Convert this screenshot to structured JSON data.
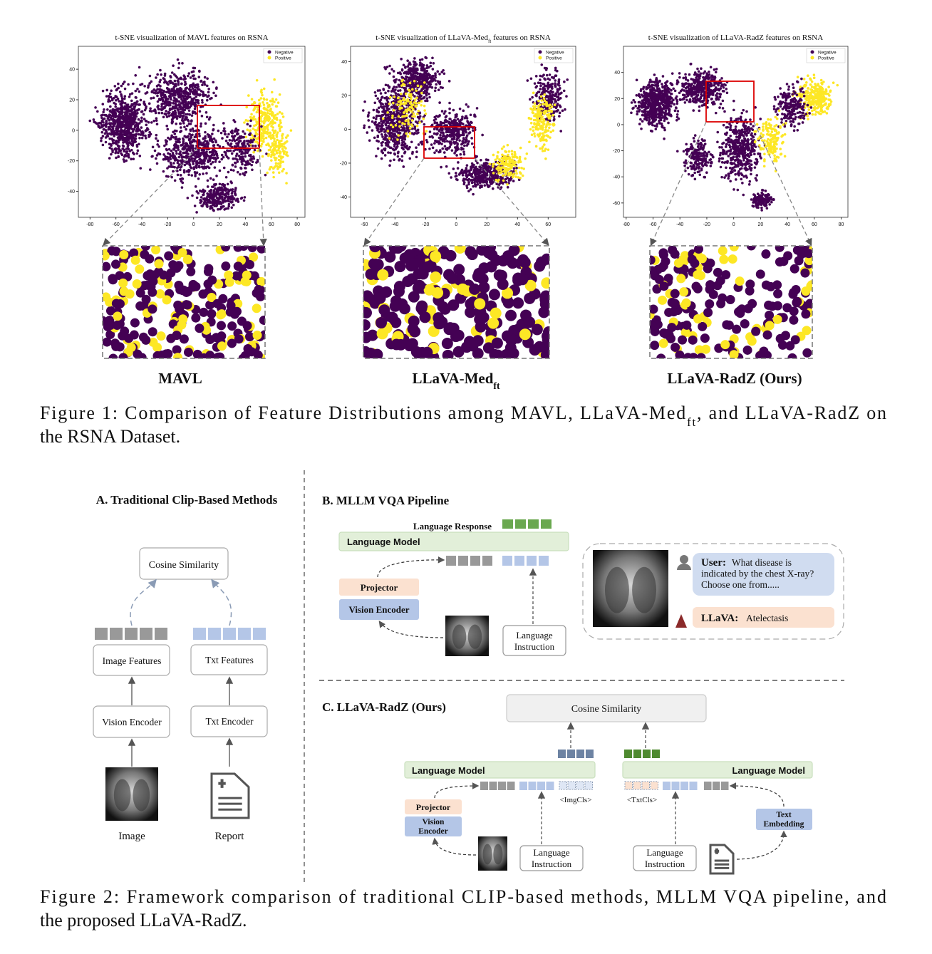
{
  "figure1": {
    "colors": [
      "#440154",
      "#fde725"
    ],
    "plots": [
      {
        "title": [
          {
            "text": "t-SNE visualization of MAVL features on RSNA"
          }
        ],
        "legend": [
          "Negative",
          "Positive"
        ],
        "xlim": [
          -89,
          86
        ],
        "ylim": [
          -57,
          55
        ],
        "xticks": [
          -80,
          -60,
          -40,
          -20,
          0,
          20,
          40,
          60,
          80
        ],
        "yticks": [
          40,
          20,
          0,
          -20,
          -40
        ],
        "label": [
          {
            "text": "MAVL"
          }
        ]
      },
      {
        "title": [
          {
            "text": "t-SNE visualization of LLaVA-Med"
          },
          {
            "text": "ft",
            "sub": true
          },
          {
            "text": " features on RSNA"
          }
        ],
        "legend": [
          "Negative",
          "Positive"
        ],
        "xlim": [
          -69,
          78
        ],
        "ylim": [
          -52,
          49
        ],
        "xticks": [
          -60,
          -40,
          -20,
          0,
          20,
          40,
          60
        ],
        "yticks": [
          40,
          20,
          0,
          -20,
          -40
        ],
        "label": [
          {
            "text": "LLaVA-Med"
          },
          {
            "text": "ft",
            "sub": true
          }
        ]
      },
      {
        "title": [
          {
            "text": "t-SNE visualization of LLaVA-RadZ features on RSNA"
          }
        ],
        "legend": [
          "Negative",
          "Positive"
        ],
        "xlim": [
          -82,
          85
        ],
        "ylim": [
          -71,
          60
        ],
        "xticks": [
          -80,
          -60,
          -40,
          -20,
          0,
          20,
          40,
          60,
          80
        ],
        "yticks": [
          40,
          20,
          0,
          -20,
          -40,
          -60
        ],
        "label": [
          {
            "text": "LLaVA-RadZ (Ours)"
          }
        ]
      }
    ],
    "caption": [
      [
        {
          "text": "Figure 1: Comparison of Feature Distributions among MAVL, LLaVA-Med"
        },
        {
          "text": "ft",
          "sub": true
        },
        {
          "text": ", and LLaVA-RadZ on"
        }
      ],
      [
        {
          "text": "the RSNA Dataset."
        }
      ]
    ]
  },
  "figure2": {
    "a": {
      "title": "A. Traditional Clip-Based Methods",
      "cosine": "Cosine Similarity",
      "image_features": "Image Features",
      "txt_features": "Txt Features",
      "vision_encoder": "Vision Encoder",
      "txt_encoder": "Txt Encoder",
      "image": "Image",
      "report": "Report"
    },
    "b": {
      "title": "B. MLLM VQA Pipeline",
      "response": "Language Response",
      "language_model": "Language Model",
      "projector": "Projector",
      "vision_encoder": "Vision Encoder",
      "instruction": [
        "Language",
        "Instruction"
      ],
      "chat": {
        "user_name": "User:",
        "user_lines": [
          "What disease is",
          "indicated by the chest X-ray?",
          "Choose one from....."
        ],
        "bot_name": "LLaVA:",
        "bot_text": "Atelectasis"
      }
    },
    "c": {
      "title": "C. LLaVA-RadZ (Ours)",
      "cosine": "Cosine Similarity",
      "language_model_left": "Language Model",
      "language_model_right": "Language Model",
      "img_cls": "<ImgCls>",
      "txt_cls": "<TxtCls>",
      "projector": "Projector",
      "vision_encoder": [
        "Vision",
        "Encoder"
      ],
      "text_embedding": [
        "Text",
        "Embedding"
      ],
      "instruction_left": [
        "Language",
        "Instruction"
      ],
      "instruction_right": [
        "Language",
        "Instruction"
      ]
    },
    "caption": [
      [
        {
          "text": "Figure 2: Framework comparison of traditional CLIP-based methods, MLLM VQA pipeline, and"
        }
      ],
      [
        {
          "text": "the proposed LLaVA-RadZ."
        }
      ]
    ]
  }
}
